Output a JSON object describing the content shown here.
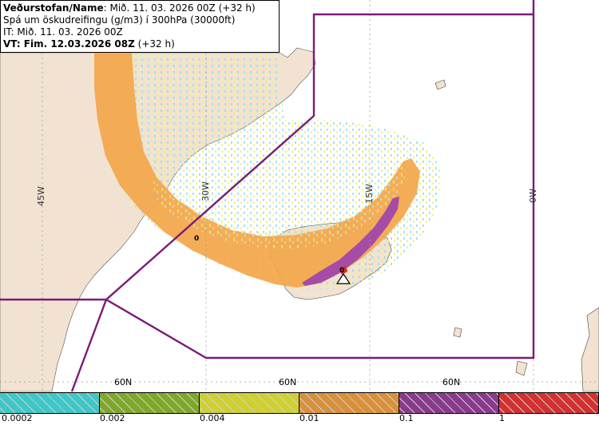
{
  "title": {
    "line1_bold": "Veðurstofan/Name",
    "line1_rest": ": Mið. 11. 03. 2026 00Z (+32 h)",
    "line2": "Spá um öskudreifingu (g/m3) í 300hPa (30000ft)",
    "line3": "IT: Mið. 11. 03. 2026 00Z",
    "line4": "VT: Fim. 12.03.2026 08Z",
    "line4_rest": " (+32 h)"
  },
  "grid_labels": {
    "lon_45w": "45W",
    "lon_30w": "30W",
    "lon_15w": "15W",
    "lon_0w": "0W",
    "lat_60n_a": "60N",
    "lat_60n_b": "60N",
    "lat_60n_c": "60N"
  },
  "markers": {
    "zero_a": "0",
    "zero_b": "0"
  },
  "legend": {
    "ticks": [
      "0.0002",
      "0.002",
      "0.004",
      "0.01",
      "0.1",
      "1"
    ],
    "colors": [
      "#3fc7c7",
      "#7fa82a",
      "#cfcf30",
      "#d9903a",
      "#8a3a8c",
      "#d33030"
    ]
  },
  "colors": {
    "ocean": "#ffffff",
    "land": "#f2e2d2",
    "fir_boundary": "#7a1a7a",
    "ash_low": "#f7c47a",
    "ash_mid": "#f4a64a",
    "ash_high": "#a64ca6"
  }
}
